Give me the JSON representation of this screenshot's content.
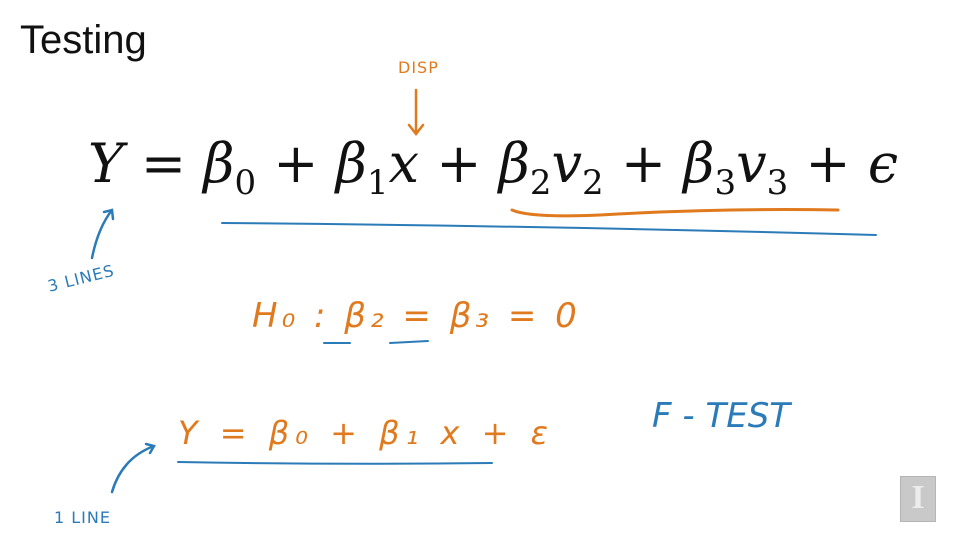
{
  "slide": {
    "title": "Testing"
  },
  "equation": {
    "lhs": "Y",
    "eq": "=",
    "b0": "β",
    "b0_sub": "0",
    "plus1": "+",
    "b1": "β",
    "b1_sub": "1",
    "x": "x",
    "plus2": "+",
    "b2": "β",
    "b2_sub": "2",
    "v2": "v",
    "v2_sub": "2",
    "plus3": "+",
    "b3": "β",
    "b3_sub": "3",
    "v3": "v",
    "v3_sub": "3",
    "plus4": "+",
    "eps": "ϵ"
  },
  "annotations": {
    "disp": "DISP",
    "three_lines": "3 LINES",
    "hypothesis": "H₀ : β₂ = β₃ = 0",
    "reduced_model": "Y = β₀ + β₁ x + ε",
    "f_test": "F - TEST",
    "one_line": "1 LINE"
  },
  "colors": {
    "orange_ink": "#e07a1f",
    "blue_ink": "#2a7bb7"
  }
}
